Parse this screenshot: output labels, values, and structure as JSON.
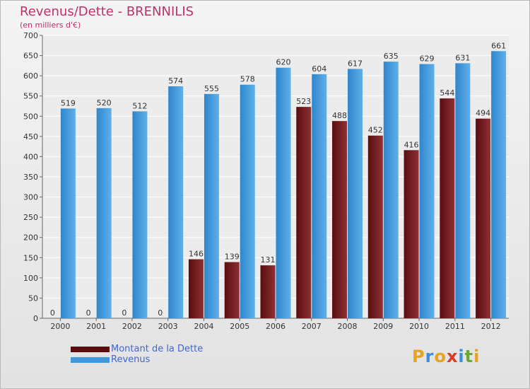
{
  "chart_data": {
    "type": "bar",
    "title": "Revenus/Dette - BRENNILIS",
    "subtitle": "(en milliers d'€)",
    "categories": [
      "2000",
      "2001",
      "2002",
      "2003",
      "2004",
      "2005",
      "2006",
      "2007",
      "2008",
      "2009",
      "2010",
      "2011",
      "2012"
    ],
    "series": [
      {
        "name": "Montant de la Dette",
        "color": "#7a1a1e",
        "values": [
          0,
          0,
          0,
          0,
          146,
          139,
          131,
          523,
          488,
          452,
          416,
          544,
          494
        ]
      },
      {
        "name": "Revenus",
        "color": "#3f98dc",
        "values": [
          519,
          520,
          512,
          574,
          555,
          578,
          620,
          604,
          617,
          635,
          629,
          631,
          661
        ]
      }
    ],
    "ylim": [
      0,
      700
    ],
    "yticks": [
      0,
      50,
      100,
      150,
      200,
      250,
      300,
      350,
      400,
      450,
      500,
      550,
      600,
      650,
      700
    ],
    "grid": true,
    "legend_position": "bottom-left"
  },
  "logo": {
    "text": "Proxiti",
    "letters": [
      {
        "ch": "P",
        "color": "#e8a21e"
      },
      {
        "ch": "r",
        "color": "#3a8fd8"
      },
      {
        "ch": "o",
        "color": "#e8a21e"
      },
      {
        "ch": "x",
        "color": "#d83a2a"
      },
      {
        "ch": "i",
        "color": "#3a8fd8"
      },
      {
        "ch": "t",
        "color": "#6aa832"
      },
      {
        "ch": "i",
        "color": "#e8a21e"
      }
    ]
  }
}
